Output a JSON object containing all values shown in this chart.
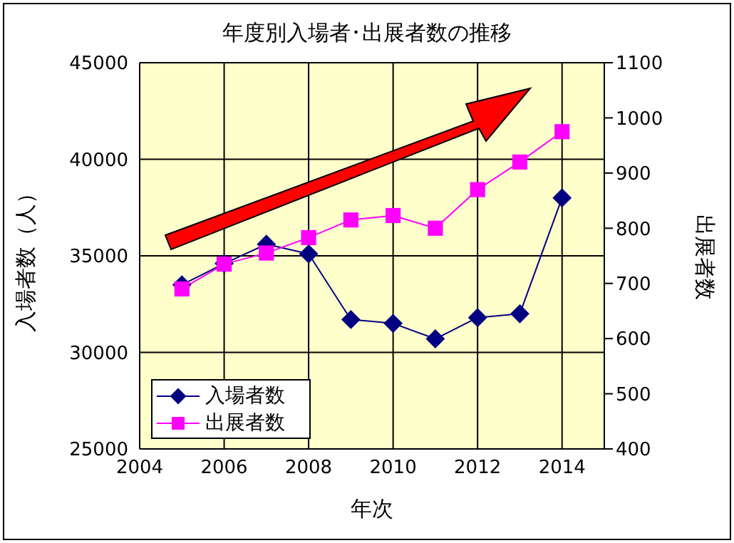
{
  "chart_data": {
    "type": "line",
    "title": "年度別入場者･出展者数の推移",
    "xlabel": "年次",
    "ylabel": "入場者数（人）",
    "y2label": "出展者数",
    "x": [
      2005,
      2006,
      2007,
      2008,
      2009,
      2010,
      2011,
      2012,
      2013,
      2014
    ],
    "series": [
      {
        "name": "入場者数",
        "color": "#000080",
        "marker": "diamond",
        "values": [
          33500,
          34600,
          35600,
          35100,
          31700,
          31500,
          30700,
          31800,
          32000,
          38000
        ]
      },
      {
        "name": "出展者数",
        "color": "#ff00ff",
        "marker": "square",
        "axis": "y2",
        "values": [
          690,
          735,
          755,
          783,
          815,
          823,
          800,
          870,
          920,
          975
        ]
      }
    ],
    "xlim": [
      2004,
      2015
    ],
    "xticks": [
      2004,
      2006,
      2008,
      2010,
      2012,
      2014
    ],
    "ylim": [
      25000,
      45000
    ],
    "yticks": [
      25000,
      30000,
      35000,
      40000,
      45000
    ],
    "y2lim": [
      400,
      1100
    ],
    "y2ticks": [
      400,
      500,
      600,
      700,
      800,
      900,
      1000,
      1100
    ],
    "grid": true,
    "legend": "bottom left",
    "line_style": "solid"
  }
}
